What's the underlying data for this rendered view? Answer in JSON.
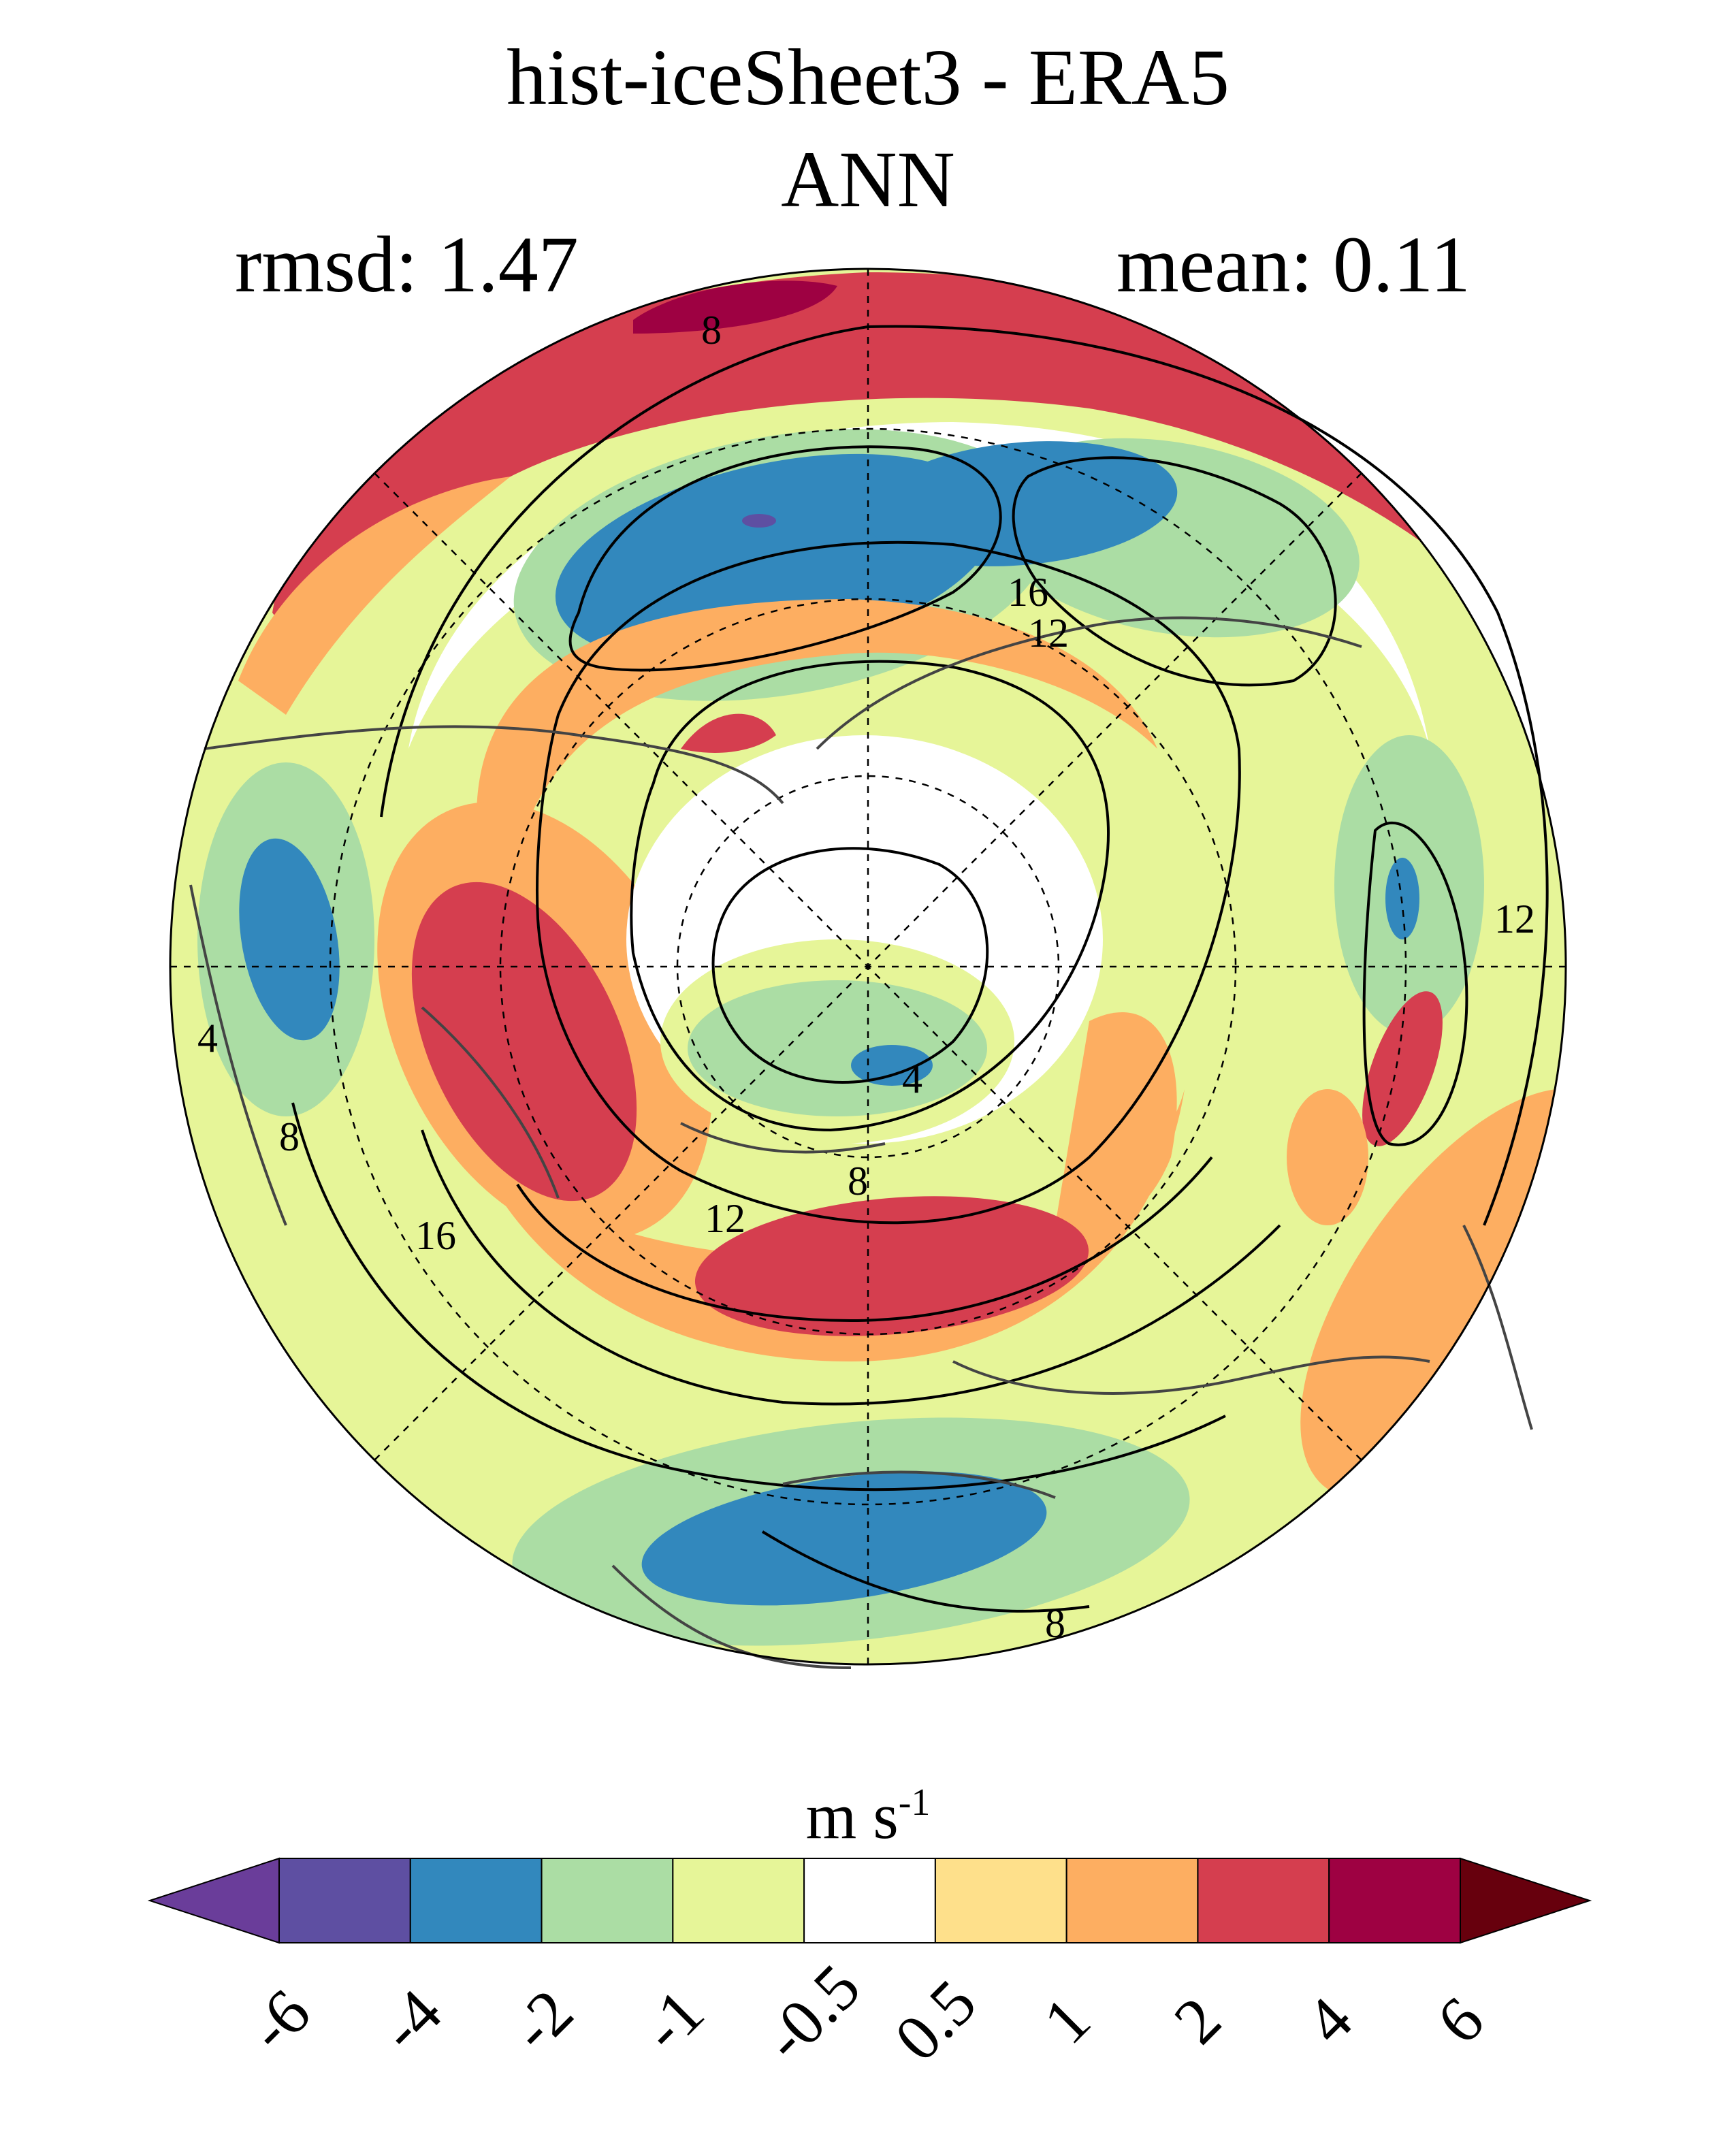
{
  "title": "hist-iceSheet3 - ERA5",
  "subtitle": "ANN",
  "stats": {
    "rmsd_label": "rmsd: 1.47",
    "mean_label": "mean: 0.11"
  },
  "units": {
    "base": "m s",
    "exponent": "-1"
  },
  "contour_labels": [
    "8",
    "16",
    "12",
    "4",
    "4",
    "8",
    "16",
    "12",
    "8",
    "12",
    "8"
  ],
  "colorbar": {
    "ticks": [
      "-6",
      "-4",
      "-2",
      "-1",
      "-0.5",
      "0.5",
      "1",
      "2",
      "4",
      "6"
    ],
    "colors": [
      "#5e4fa2",
      "#3288bd",
      "#abdda4",
      "#e6f598",
      "#ffffff",
      "#fee08b",
      "#fdae61",
      "#d53e4f",
      "#9e0142"
    ],
    "under_color": "#6a3d9a",
    "over_color": "#67000d"
  },
  "map_colors": {
    "red": "#d53e4f",
    "dark_red": "#9e0142",
    "orange": "#fdae61",
    "yellow": "#fee08b",
    "light_green": "#e6f598",
    "green": "#abdda4",
    "blue": "#3288bd",
    "purple": "#5e4fa2"
  }
}
